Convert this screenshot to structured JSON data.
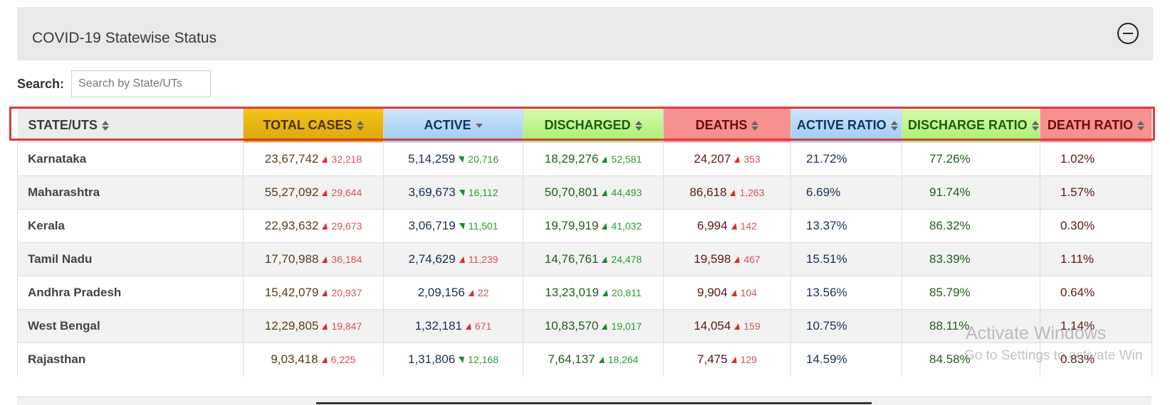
{
  "panel": {
    "title": "COVID-19 Statewise Status"
  },
  "search": {
    "label": "Search:",
    "placeholder": "Search by State/UTs"
  },
  "table": {
    "headers": [
      "STATE/UTS",
      "TOTAL CASES",
      "ACTIVE",
      "DISCHARGED",
      "DEATHS",
      "ACTIVE RATIO",
      "DISCHARGE RATIO",
      "DEATH RATIO"
    ],
    "rows": [
      {
        "state": "Karnataka",
        "total": "23,67,742",
        "total_d": "32,218",
        "total_dir": "up",
        "active": "5,14,259",
        "active_d": "20,716",
        "active_dir": "down",
        "disch": "18,29,276",
        "disch_d": "52,581",
        "deaths": "24,207",
        "deaths_d": "353",
        "aratio": "21.72%",
        "dratio": "77.26%",
        "xratio": "1.02%"
      },
      {
        "state": "Maharashtra",
        "total": "55,27,092",
        "total_d": "29,644",
        "total_dir": "up",
        "active": "3,69,673",
        "active_d": "16,112",
        "active_dir": "down",
        "disch": "50,70,801",
        "disch_d": "44,493",
        "deaths": "86,618",
        "deaths_d": "1,263",
        "aratio": "6.69%",
        "dratio": "91.74%",
        "xratio": "1.57%"
      },
      {
        "state": "Kerala",
        "total": "22,93,632",
        "total_d": "29,673",
        "total_dir": "up",
        "active": "3,06,719",
        "active_d": "11,501",
        "active_dir": "down",
        "disch": "19,79,919",
        "disch_d": "41,032",
        "deaths": "6,994",
        "deaths_d": "142",
        "aratio": "13.37%",
        "dratio": "86.32%",
        "xratio": "0.30%"
      },
      {
        "state": "Tamil Nadu",
        "total": "17,70,988",
        "total_d": "36,184",
        "total_dir": "up",
        "active": "2,74,629",
        "active_d": "11,239",
        "active_dir": "up",
        "disch": "14,76,761",
        "disch_d": "24,478",
        "deaths": "19,598",
        "deaths_d": "467",
        "aratio": "15.51%",
        "dratio": "83.39%",
        "xratio": "1.11%"
      },
      {
        "state": "Andhra Pradesh",
        "total": "15,42,079",
        "total_d": "20,937",
        "total_dir": "up",
        "active": "2,09,156",
        "active_d": "22",
        "active_dir": "up",
        "disch": "13,23,019",
        "disch_d": "20,811",
        "deaths": "9,904",
        "deaths_d": "104",
        "aratio": "13.56%",
        "dratio": "85.79%",
        "xratio": "0.64%"
      },
      {
        "state": "West Bengal",
        "total": "12,29,805",
        "total_d": "19,847",
        "total_dir": "up",
        "active": "1,32,181",
        "active_d": "671",
        "active_dir": "up",
        "disch": "10,83,570",
        "disch_d": "19,017",
        "deaths": "14,054",
        "deaths_d": "159",
        "aratio": "10.75%",
        "dratio": "88.11%",
        "xratio": "1.14%"
      },
      {
        "state": "Rajasthan",
        "total": "9,03,418",
        "total_d": "6,225",
        "total_dir": "up",
        "active": "1,31,806",
        "active_d": "12,168",
        "active_dir": "down",
        "disch": "7,64,137",
        "disch_d": "18,264",
        "deaths": "7,475",
        "deaths_d": "129",
        "aratio": "14.59%",
        "dratio": "84.58%",
        "xratio": "0.83%"
      }
    ]
  },
  "watermark": {
    "line1": "Activate Windows",
    "line2": "Go to Settings to activate Win"
  }
}
